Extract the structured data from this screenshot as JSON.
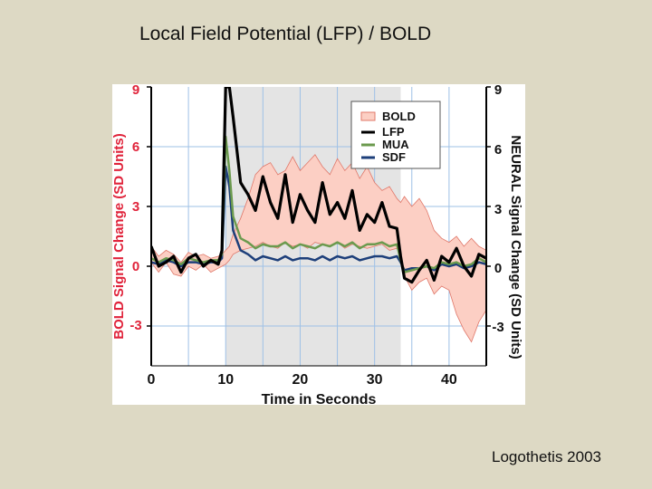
{
  "slide": {
    "title": "Local Field Potential (LFP) / BOLD",
    "credit": "Logothetis 2003"
  },
  "chart_data": {
    "type": "line",
    "title": "",
    "xlabel": "Time in Seconds",
    "ylabel_left": "BOLD Signal Change (SD Units)",
    "ylabel_right": "NEURAL Signal Change (SD Units)",
    "xlim": [
      0,
      45
    ],
    "ylim": [
      -5,
      9
    ],
    "xticks": [
      0,
      10,
      20,
      30,
      40
    ],
    "yticks": [
      -3,
      0,
      3,
      6,
      9
    ],
    "yticks_left": [
      "9",
      "6",
      "3",
      "0",
      "-3"
    ],
    "yticks_right": [
      "9",
      "6",
      "3",
      "0",
      "-3"
    ],
    "stimulus_interval": [
      10,
      33.5
    ],
    "legend": {
      "placement": "top-right",
      "entries": [
        "BOLD",
        "LFP",
        "MUA",
        "SDF"
      ]
    },
    "colors": {
      "bold_fill": "#fccfc4",
      "bold_edge": "#e0786a",
      "lfp": "#000000",
      "mua": "#6b9a4e",
      "sdf": "#1d3f7a",
      "stimulus": "#e4e4e4",
      "left_axis_text": "#e0233a",
      "axis_text": "#111111",
      "grid": "#9ec1e6"
    },
    "x": [
      0,
      1,
      2,
      3,
      4,
      5,
      6,
      7,
      8,
      9,
      9.5,
      10,
      10.5,
      11,
      12,
      13,
      14,
      15,
      16,
      17,
      18,
      19,
      20,
      21,
      22,
      23,
      24,
      25,
      26,
      27,
      28,
      29,
      30,
      31,
      32,
      33,
      33.5,
      34,
      35,
      36,
      37,
      38,
      39,
      40,
      41,
      42,
      43,
      44,
      45
    ],
    "series": [
      {
        "name": "LFP",
        "values": [
          1.0,
          0.0,
          0.2,
          0.5,
          -0.3,
          0.4,
          0.6,
          0.0,
          0.3,
          0.1,
          0.8,
          9.0,
          9.0,
          7.5,
          4.2,
          3.6,
          2.8,
          4.5,
          3.2,
          2.4,
          4.6,
          2.2,
          3.6,
          2.8,
          2.2,
          4.2,
          2.6,
          3.2,
          2.4,
          3.8,
          1.8,
          2.6,
          2.2,
          3.2,
          2.0,
          1.9,
          0.5,
          -0.6,
          -0.8,
          -0.2,
          0.3,
          -0.7,
          0.5,
          0.2,
          0.9,
          0.0,
          -0.5,
          0.6,
          0.4
        ]
      },
      {
        "name": "MUA",
        "values": [
          0.4,
          0.2,
          0.4,
          0.3,
          0.1,
          0.4,
          0.3,
          0.2,
          0.3,
          0.3,
          0.6,
          6.5,
          4.8,
          2.5,
          1.4,
          1.2,
          0.9,
          1.1,
          1.0,
          1.0,
          1.2,
          0.9,
          1.1,
          1.0,
          0.9,
          1.1,
          1.0,
          1.2,
          1.0,
          1.2,
          0.9,
          1.1,
          1.1,
          1.2,
          1.0,
          1.1,
          0.3,
          -0.3,
          -0.2,
          -0.1,
          0.0,
          -0.1,
          0.2,
          0.1,
          0.2,
          0.0,
          0.1,
          0.4,
          0.2
        ]
      },
      {
        "name": "SDF",
        "values": [
          0.2,
          0.1,
          0.3,
          0.2,
          0.0,
          0.2,
          0.2,
          0.1,
          0.2,
          0.2,
          0.4,
          5.0,
          4.0,
          1.8,
          0.8,
          0.6,
          0.3,
          0.5,
          0.4,
          0.3,
          0.5,
          0.3,
          0.4,
          0.4,
          0.3,
          0.5,
          0.3,
          0.5,
          0.4,
          0.5,
          0.3,
          0.4,
          0.5,
          0.5,
          0.4,
          0.5,
          0.2,
          -0.2,
          -0.1,
          -0.1,
          0.0,
          -0.2,
          0.1,
          0.0,
          0.1,
          -0.1,
          0.0,
          0.2,
          0.1
        ]
      },
      {
        "name": "BOLD upper",
        "values": [
          1.0,
          0.5,
          0.8,
          0.6,
          0.2,
          0.7,
          0.5,
          0.6,
          0.4,
          0.5,
          0.6,
          0.8,
          1.0,
          1.6,
          2.4,
          3.4,
          4.6,
          5.0,
          5.2,
          4.6,
          4.8,
          5.5,
          4.8,
          5.2,
          5.6,
          5.0,
          4.6,
          5.4,
          4.8,
          5.2,
          4.4,
          5.0,
          4.2,
          3.8,
          4.0,
          3.4,
          3.2,
          3.5,
          3.0,
          3.4,
          2.8,
          1.8,
          1.4,
          1.2,
          1.5,
          1.0,
          1.4,
          1.0,
          0.8
        ]
      },
      {
        "name": "BOLD lower",
        "values": [
          0.2,
          -0.3,
          0.2,
          -0.4,
          -0.5,
          0.0,
          -0.2,
          0.1,
          -0.3,
          -0.1,
          0.0,
          0.1,
          0.3,
          0.6,
          0.8,
          0.9,
          1.0,
          1.2,
          1.0,
          0.9,
          1.2,
          1.0,
          1.1,
          0.9,
          1.2,
          1.1,
          1.0,
          1.2,
          0.9,
          1.1,
          1.0,
          0.9,
          1.0,
          1.1,
          0.8,
          0.9,
          0.5,
          -0.5,
          -1.2,
          -0.8,
          -0.6,
          -1.4,
          -1.0,
          -1.2,
          -2.4,
          -3.2,
          -3.8,
          -2.8,
          -2.2
        ]
      }
    ]
  }
}
